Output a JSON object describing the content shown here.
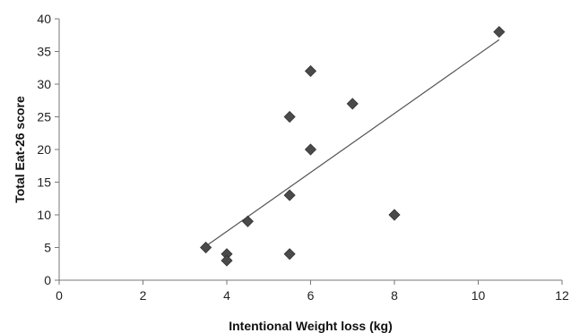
{
  "chart_data": {
    "type": "scatter",
    "title": "",
    "xlabel": "Intentional Weight loss (kg)",
    "ylabel": "Total Eat-26 score",
    "xlim": [
      0,
      12
    ],
    "ylim": [
      0,
      40
    ],
    "x_ticks": [
      0,
      2,
      4,
      6,
      8,
      10,
      12
    ],
    "y_ticks": [
      0,
      5,
      10,
      15,
      20,
      25,
      30,
      35,
      40
    ],
    "grid": false,
    "legend": "none",
    "marker": "diamond",
    "colors": {
      "marker": "#4a4a4a",
      "trendline": "#555555",
      "axis": "#777777"
    },
    "series": [
      {
        "points": [
          {
            "x": 3.5,
            "y": 5
          },
          {
            "x": 4.0,
            "y": 4
          },
          {
            "x": 4.0,
            "y": 3
          },
          {
            "x": 4.5,
            "y": 9
          },
          {
            "x": 5.5,
            "y": 13
          },
          {
            "x": 5.5,
            "y": 25
          },
          {
            "x": 5.5,
            "y": 4
          },
          {
            "x": 6.0,
            "y": 32
          },
          {
            "x": 6.0,
            "y": 20
          },
          {
            "x": 7.0,
            "y": 27
          },
          {
            "x": 8.0,
            "y": 10
          },
          {
            "x": 10.5,
            "y": 38
          }
        ]
      }
    ],
    "trendline": {
      "type": "linear",
      "from": {
        "x": 3.5,
        "y": 5.2
      },
      "to": {
        "x": 10.5,
        "y": 36.8
      }
    }
  }
}
